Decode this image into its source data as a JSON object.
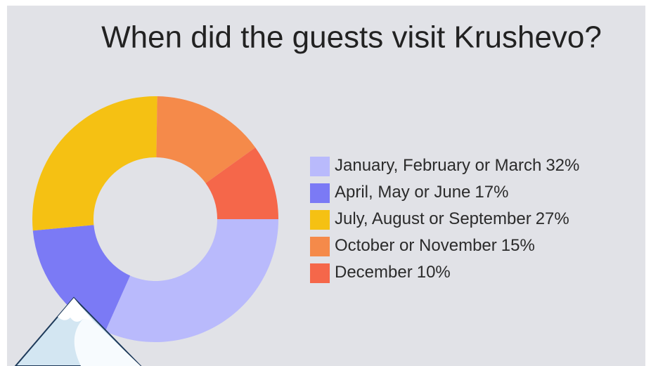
{
  "chart_data": {
    "type": "donut",
    "title": "When did the guests visit Krushevo?",
    "categories": [
      "January, February or March",
      "April, May or June",
      "July, August or September",
      "October or November",
      "December"
    ],
    "values": [
      32,
      17,
      27,
      15,
      10
    ],
    "value_labels": [
      "32%",
      "17%",
      "27%",
      "15%",
      "10%"
    ],
    "colors": [
      "#b9bafc",
      "#7b7af5",
      "#f5c113",
      "#f58a4a",
      "#f5674a"
    ],
    "legend": "right"
  }
}
